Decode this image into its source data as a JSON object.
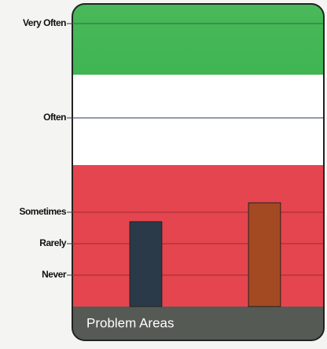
{
  "chart_data": {
    "type": "bar",
    "footer": "Problem Areas",
    "categories": [
      null,
      null
    ],
    "values": [
      2.7,
      3.3
    ],
    "colors": [
      "#2b3a48",
      "#a34a22"
    ],
    "ylim": [
      0,
      9.5
    ],
    "yticks": [
      {
        "value": 1,
        "label": "Never"
      },
      {
        "value": 2,
        "label": "Rarely"
      },
      {
        "value": 3,
        "label": "Sometimes"
      },
      {
        "value": 6,
        "label": "Often"
      },
      {
        "value": 9,
        "label": "Very Often"
      }
    ],
    "grid": true
  }
}
